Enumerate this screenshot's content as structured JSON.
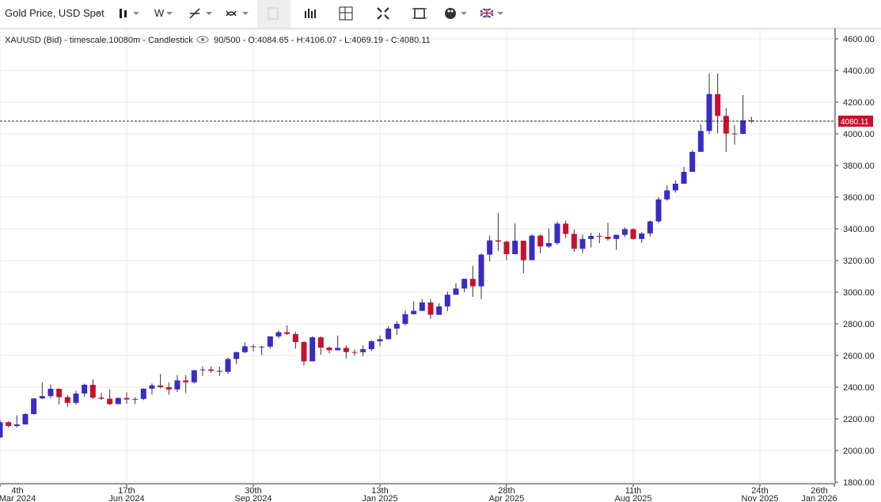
{
  "toolbar": {
    "symbol": "Gold Price, USD Spot",
    "interval": "W"
  },
  "chart_data": {
    "type": "candlestick",
    "title": "XAUUSD (Bid) - timescale.10080m - Candlestick",
    "info": "90/500 - O:4084.65 - H:4106.07 - L:4069.19 - C:4080.11",
    "up_color": "#3a2bc4",
    "down_color": "#c8102e",
    "grid": true,
    "x": [
      0,
      1,
      2,
      3,
      4,
      5,
      6,
      7,
      8,
      9,
      10,
      11,
      12,
      13,
      14,
      15,
      16,
      17,
      18,
      19,
      20,
      21,
      22,
      23,
      24,
      25,
      26,
      27,
      28,
      29,
      30,
      31,
      32,
      33,
      34,
      35,
      36,
      37,
      38,
      39,
      40,
      41,
      42,
      43,
      44,
      45,
      46,
      47,
      48,
      49,
      50,
      51,
      52,
      53,
      54,
      55,
      56,
      57,
      58,
      59,
      60,
      61,
      62,
      63,
      64,
      65,
      66,
      67,
      68,
      69,
      70,
      71,
      72,
      73,
      74,
      75,
      76,
      77,
      78,
      79,
      80,
      81,
      82,
      83,
      84,
      85,
      86,
      87,
      88,
      89
    ],
    "open": [
      2083,
      2179,
      2155,
      2165,
      2230,
      2329,
      2344,
      2390,
      2337,
      2301,
      2360,
      2415,
      2334,
      2327,
      2293,
      2332,
      2322,
      2326,
      2391,
      2411,
      2400,
      2386,
      2443,
      2431,
      2507,
      2512,
      2503,
      2497,
      2578,
      2621,
      2658,
      2653,
      2656,
      2721,
      2747,
      2736,
      2685,
      2563,
      2715,
      2650,
      2633,
      2648,
      2622,
      2621,
      2640,
      2690,
      2703,
      2770,
      2800,
      2861,
      2882,
      2935,
      2857,
      2910,
      2984,
      3023,
      3084,
      3037,
      3237,
      3327,
      3319,
      3240,
      3325,
      3202,
      3357,
      3289,
      3310,
      3433,
      3368,
      3274,
      3336,
      3355,
      3350,
      3336,
      3362,
      3398,
      3336,
      3371,
      3447,
      3586,
      3643,
      3685,
      3760,
      3886,
      4018,
      4251,
      4113,
      4002,
      4000,
      4084.65
    ],
    "high": [
      2195,
      2185,
      2222,
      2236,
      2330,
      2431,
      2418,
      2392,
      2352,
      2378,
      2422,
      2450,
      2364,
      2387,
      2336,
      2368,
      2338,
      2392,
      2424,
      2483,
      2430,
      2477,
      2477,
      2509,
      2531,
      2531,
      2529,
      2586,
      2625,
      2685,
      2670,
      2662,
      2721,
      2758,
      2790,
      2750,
      2690,
      2721,
      2721,
      2657,
      2726,
      2664,
      2639,
      2665,
      2697,
      2726,
      2786,
      2817,
      2886,
      2942,
      2956,
      2956,
      2930,
      3004,
      3057,
      3086,
      3167,
      3245,
      3357,
      3500,
      3324,
      3435,
      3325,
      3365,
      3365,
      3403,
      3446,
      3452,
      3397,
      3365,
      3375,
      3375,
      3438,
      3363,
      3409,
      3404,
      3379,
      3453,
      3600,
      3674,
      3707,
      3791,
      3897,
      4059,
      4381,
      4381,
      4161,
      4055,
      4245,
      4106.07
    ],
    "low": [
      2078,
      2146,
      2146,
      2163,
      2228,
      2326,
      2330,
      2291,
      2277,
      2290,
      2340,
      2325,
      2320,
      2287,
      2293,
      2295,
      2293,
      2318,
      2353,
      2392,
      2353,
      2370,
      2364,
      2424,
      2470,
      2491,
      2471,
      2485,
      2546,
      2615,
      2625,
      2603,
      2643,
      2708,
      2730,
      2643,
      2536,
      2563,
      2605,
      2613,
      2631,
      2583,
      2599,
      2596,
      2630,
      2658,
      2702,
      2730,
      2790,
      2860,
      2880,
      2832,
      2857,
      2880,
      2982,
      3000,
      2970,
      2957,
      3195,
      3260,
      3202,
      3240,
      3120,
      3205,
      3245,
      3280,
      3300,
      3340,
      3255,
      3247,
      3282,
      3309,
      3325,
      3268,
      3348,
      3331,
      3311,
      3351,
      3436,
      3578,
      3628,
      3683,
      3760,
      3885,
      3998,
      4004,
      3886,
      3931,
      3997,
      4069.19
    ],
    "close": [
      2179,
      2155,
      2165,
      2230,
      2329,
      2344,
      2390,
      2337,
      2301,
      2360,
      2415,
      2334,
      2327,
      2293,
      2332,
      2322,
      2326,
      2391,
      2411,
      2400,
      2386,
      2443,
      2431,
      2507,
      2512,
      2503,
      2497,
      2578,
      2621,
      2658,
      2653,
      2656,
      2721,
      2747,
      2736,
      2685,
      2563,
      2715,
      2650,
      2633,
      2648,
      2622,
      2621,
      2640,
      2690,
      2703,
      2770,
      2800,
      2861,
      2882,
      2935,
      2857,
      2910,
      2984,
      3023,
      3084,
      3037,
      3237,
      3327,
      3319,
      3240,
      3325,
      3202,
      3357,
      3289,
      3310,
      3433,
      3368,
      3274,
      3336,
      3355,
      3350,
      3336,
      3362,
      3398,
      3336,
      3371,
      3447,
      3586,
      3643,
      3685,
      3760,
      3886,
      4018,
      4251,
      4113,
      4002,
      4000,
      4085,
      4080.11
    ],
    "last_label": "4080.11",
    "xlim": [
      0,
      99
    ],
    "xticks": [
      {
        "value": 0,
        "label": [
          "4th",
          "Mar 2024"
        ]
      },
      {
        "value": 15,
        "label": [
          "17th",
          "Jun 2024"
        ]
      },
      {
        "value": 30,
        "label": [
          "30th",
          "Sep 2024"
        ]
      },
      {
        "value": 45,
        "label": [
          "13th",
          "Jan 2025"
        ]
      },
      {
        "value": 60,
        "label": [
          "28th",
          "Apr 2025"
        ]
      },
      {
        "value": 75,
        "label": [
          "11th",
          "Aug 2025"
        ]
      },
      {
        "value": 90,
        "label": [
          "24th",
          "Nov 2025"
        ]
      },
      {
        "value": 99,
        "label": [
          "26th",
          "Jan 2026"
        ]
      }
    ],
    "ylim": [
      1790,
      4660
    ],
    "yticks": [
      {
        "value": 1800,
        "label": "1800.00"
      },
      {
        "value": 2000,
        "label": "2000.00"
      },
      {
        "value": 2200,
        "label": "2200.00"
      },
      {
        "value": 2400,
        "label": "2400.00"
      },
      {
        "value": 2600,
        "label": "2600.00"
      },
      {
        "value": 2800,
        "label": "2800.00"
      },
      {
        "value": 3000,
        "label": "3000.00"
      },
      {
        "value": 3200,
        "label": "3200.00"
      },
      {
        "value": 3400,
        "label": "3400.00"
      },
      {
        "value": 3600,
        "label": "3600.00"
      },
      {
        "value": 3800,
        "label": "3800.00"
      },
      {
        "value": 4000,
        "label": "4000.00"
      },
      {
        "value": 4200,
        "label": "4200.00"
      },
      {
        "value": 4400,
        "label": "4400.00"
      },
      {
        "value": 4600,
        "label": "4600.00"
      }
    ]
  }
}
